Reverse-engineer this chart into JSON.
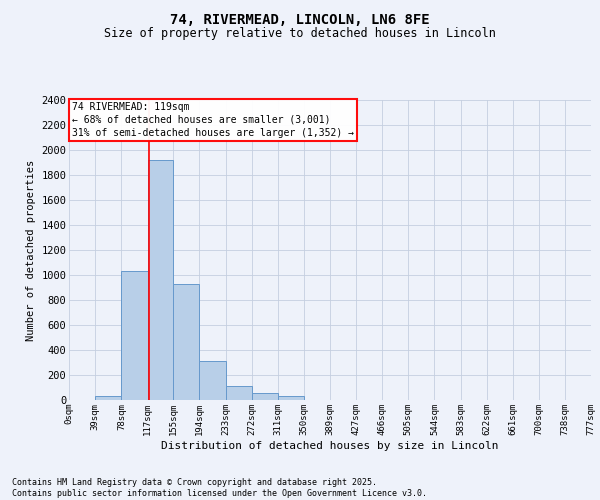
{
  "title": "74, RIVERMEAD, LINCOLN, LN6 8FE",
  "subtitle": "Size of property relative to detached houses in Lincoln",
  "xlabel": "Distribution of detached houses by size in Lincoln",
  "ylabel": "Number of detached properties",
  "bar_edges": [
    0,
    39,
    78,
    117,
    155,
    194,
    233,
    272,
    311,
    350,
    389,
    427,
    466,
    505,
    544,
    583,
    622,
    661,
    700,
    738,
    777
  ],
  "bar_heights": [
    0,
    30,
    1030,
    1920,
    930,
    310,
    110,
    60,
    35,
    0,
    0,
    0,
    0,
    0,
    0,
    0,
    0,
    0,
    0,
    0
  ],
  "bar_color": "#b8cfe8",
  "bar_edgecolor": "#6699cc",
  "red_line_x": 119,
  "ylim": [
    0,
    2400
  ],
  "yticks": [
    0,
    200,
    400,
    600,
    800,
    1000,
    1200,
    1400,
    1600,
    1800,
    2000,
    2200,
    2400
  ],
  "tick_labels": [
    "0sqm",
    "39sqm",
    "78sqm",
    "117sqm",
    "155sqm",
    "194sqm",
    "233sqm",
    "272sqm",
    "311sqm",
    "350sqm",
    "389sqm",
    "427sqm",
    "466sqm",
    "505sqm",
    "544sqm",
    "583sqm",
    "622sqm",
    "661sqm",
    "700sqm",
    "738sqm",
    "777sqm"
  ],
  "annotation_text": "74 RIVERMEAD: 119sqm\n← 68% of detached houses are smaller (3,001)\n31% of semi-detached houses are larger (1,352) →",
  "footer_text": "Contains HM Land Registry data © Crown copyright and database right 2025.\nContains public sector information licensed under the Open Government Licence v3.0.",
  "bg_color": "#eef2fa",
  "grid_color": "#c5cfe0"
}
